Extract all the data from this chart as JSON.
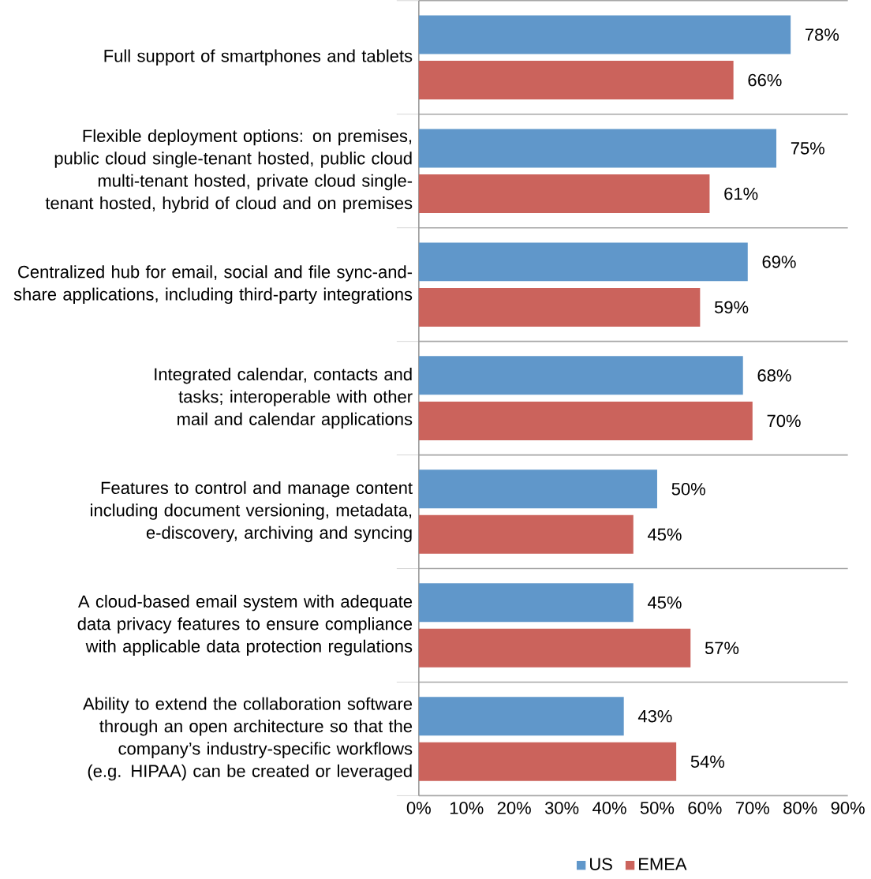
{
  "chart_data": {
    "type": "bar",
    "orientation": "horizontal",
    "categories": [
      "Full support of smartphones and tablets",
      "Flexible deployment options: on premises, public cloud single-tenant hosted, public cloud multi-tenant hosted, private cloud single-tenant hosted, hybrid of cloud and on premises",
      "Centralized hub for email, social and file sync-and-share applications, including third-party integrations",
      "Integrated calendar, contacts and tasks; interoperable with other mail and calendar applications",
      "Features to control and manage content including document versioning, metadata, e-discovery, archiving and syncing",
      "A cloud-based email system with adequate data privacy features to ensure compliance with applicable data protection regulations",
      "Ability to extend the collaboration software through an open architecture so that the company’s industry-specific workflows (e.g. HIPAA) can be created or leveraged"
    ],
    "series": [
      {
        "name": "US",
        "color": "#6097ca",
        "values": [
          78,
          75,
          69,
          68,
          50,
          45,
          43
        ],
        "value_labels": [
          "78%",
          "75%",
          "69%",
          "68%",
          "50%",
          "45%",
          "43%"
        ]
      },
      {
        "name": "EMEA",
        "color": "#cb635c",
        "values": [
          66,
          61,
          59,
          70,
          45,
          57,
          54
        ],
        "value_labels": [
          "66%",
          "61%",
          "59%",
          "70%",
          "45%",
          "57%",
          "54%"
        ]
      }
    ],
    "xlim": [
      0,
      90
    ],
    "xticks": [
      {
        "value": 0,
        "label": "0%"
      },
      {
        "value": 10,
        "label": "10%"
      },
      {
        "value": 20,
        "label": "20%"
      },
      {
        "value": 30,
        "label": "30%"
      },
      {
        "value": 40,
        "label": "40%"
      },
      {
        "value": 50,
        "label": "50%"
      },
      {
        "value": 60,
        "label": "60%"
      },
      {
        "value": 70,
        "label": "70%"
      },
      {
        "value": 80,
        "label": "80%"
      },
      {
        "value": 90,
        "label": "90%"
      }
    ],
    "legend": "bottom"
  }
}
